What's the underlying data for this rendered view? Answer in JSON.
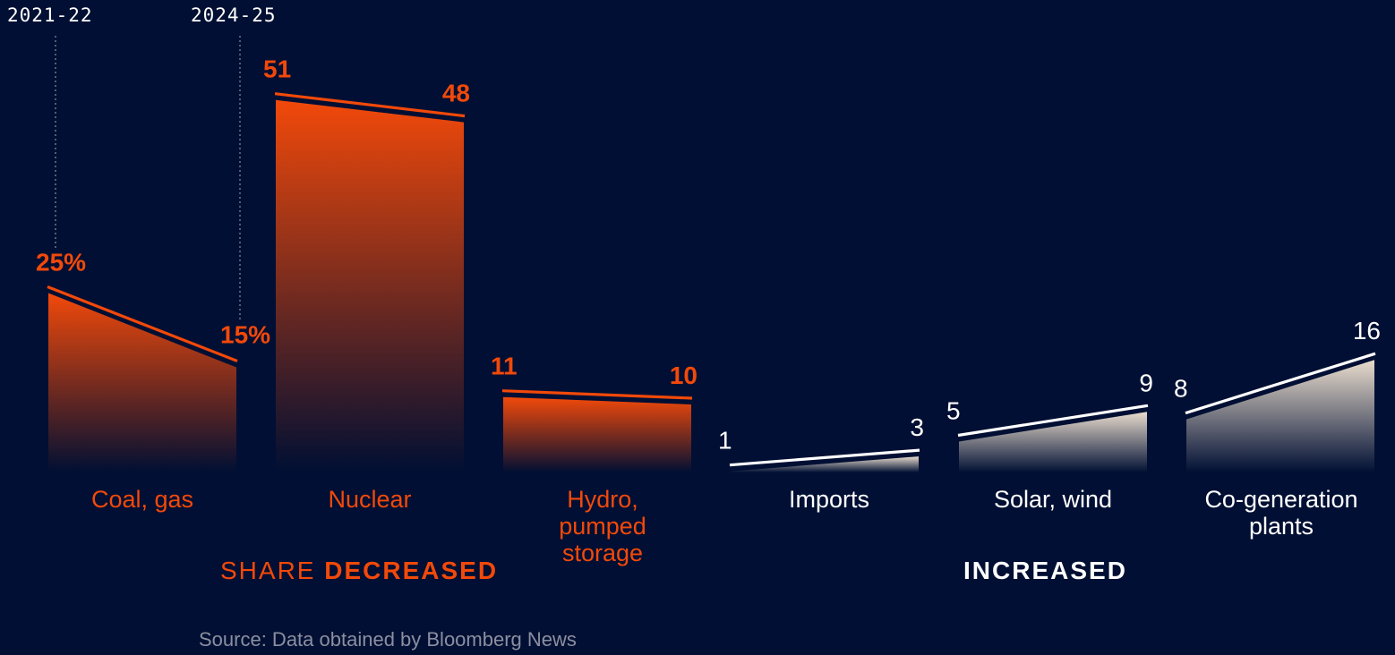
{
  "colors": {
    "background": "#000f33",
    "decreased": "#f2490a",
    "increased": "#ffffff",
    "increased_fill": "#e9dccd",
    "source_text": "#8b8fa0"
  },
  "periods": {
    "start": "2021-22",
    "end": "2024-25"
  },
  "groups": {
    "decreased_prefix": "SHARE ",
    "decreased_label": "DECREASED",
    "increased_label": "INCREASED"
  },
  "source": "Source: Data obtained by Bloomberg News",
  "chart_data": {
    "type": "area",
    "x": [
      "2021-22",
      "2024-25"
    ],
    "unit": "%",
    "series": [
      {
        "name": "Coal, gas",
        "values": [
          25,
          15
        ],
        "group": "decreased",
        "labels": [
          "25%",
          "15%"
        ]
      },
      {
        "name": "Nuclear",
        "values": [
          51,
          48
        ],
        "group": "decreased",
        "labels": [
          "51",
          "48"
        ]
      },
      {
        "name": "Hydro, pumped storage",
        "values": [
          11,
          10
        ],
        "group": "decreased",
        "labels": [
          "11",
          "10"
        ]
      },
      {
        "name": "Imports",
        "values": [
          1,
          3
        ],
        "group": "increased",
        "labels": [
          "1",
          "3"
        ]
      },
      {
        "name": "Solar, wind",
        "values": [
          5,
          9
        ],
        "group": "increased",
        "labels": [
          "5",
          "9"
        ]
      },
      {
        "name": "Co-generation plants",
        "values": [
          8,
          16
        ],
        "group": "increased",
        "labels": [
          "8",
          "16"
        ]
      }
    ]
  }
}
